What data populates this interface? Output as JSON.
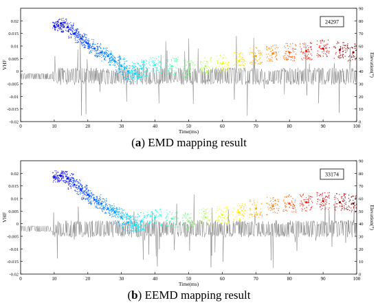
{
  "chart_data": [
    {
      "type": "scatter",
      "panel_letter": "a",
      "caption": "EMD mapping result",
      "count_label": "24297",
      "xlabel": "Time(ms)",
      "ylabel_left": "VHF",
      "ylabel_right": "Elevation(°)",
      "xlim": [
        0,
        100
      ],
      "ylim_left": [
        -0.02,
        0.025
      ],
      "ylim_right": [
        0,
        90
      ],
      "x_ticks": [
        "0",
        "10",
        "20",
        "30",
        "40",
        "50",
        "60",
        "70",
        "80",
        "90",
        "100"
      ],
      "y_ticks_left": [
        "-0.02",
        "-0.015",
        "-0.01",
        "-0.005",
        "0",
        "0.005",
        "0.01",
        "0.015",
        "0.02"
      ],
      "y_ticks_right": [
        "0",
        "10",
        "20",
        "30",
        "40",
        "50",
        "60",
        "70",
        "80",
        "90"
      ],
      "series": [
        {
          "kind": "vhf-waveform",
          "color": "#808080",
          "baseline": -0.002,
          "start_ms": 0,
          "burst_start_ms": 9.5
        },
        {
          "kind": "elevation-sources",
          "colormap": "jet",
          "points": [
            [
              10,
              76
            ],
            [
              12,
              78
            ],
            [
              14,
              75
            ],
            [
              16,
              70
            ],
            [
              18,
              66
            ],
            [
              20,
              62
            ],
            [
              22,
              58
            ],
            [
              24,
              55
            ],
            [
              26,
              52
            ],
            [
              28,
              48
            ],
            [
              30,
              44
            ],
            [
              32,
              40
            ],
            [
              34,
              38
            ],
            [
              36,
              42
            ],
            [
              40,
              45
            ],
            [
              45,
              44
            ],
            [
              50,
              42
            ],
            [
              55,
              44
            ],
            [
              60,
              46
            ],
            [
              65,
              48
            ],
            [
              70,
              52
            ],
            [
              75,
              54
            ],
            [
              80,
              55
            ],
            [
              85,
              56
            ],
            [
              90,
              58
            ],
            [
              95,
              57
            ],
            [
              99,
              55
            ]
          ]
        }
      ],
      "grid": false
    },
    {
      "type": "scatter",
      "panel_letter": "b",
      "caption": "EEMD mapping result",
      "count_label": "33174",
      "xlabel": "Time(ms)",
      "ylabel_left": "VHF",
      "ylabel_right": "Elevation(°)",
      "xlim": [
        0,
        100
      ],
      "ylim_left": [
        -0.02,
        0.025
      ],
      "ylim_right": [
        0,
        90
      ],
      "x_ticks": [
        "0",
        "10",
        "20",
        "30",
        "40",
        "50",
        "60",
        "70",
        "80",
        "90",
        "100"
      ],
      "y_ticks_left": [
        "-0.02",
        "-0.015",
        "-0.01",
        "-0.005",
        "0",
        "0.005",
        "0.01",
        "0.015",
        "0.02"
      ],
      "y_ticks_right": [
        "0",
        "10",
        "20",
        "30",
        "40",
        "50",
        "60",
        "70",
        "80",
        "90"
      ],
      "series": [
        {
          "kind": "vhf-waveform",
          "color": "#808080",
          "baseline": -0.002,
          "start_ms": 0,
          "burst_start_ms": 9.5
        },
        {
          "kind": "elevation-sources",
          "colormap": "jet",
          "points": [
            [
              10,
              77
            ],
            [
              12,
              78
            ],
            [
              14,
              76
            ],
            [
              16,
              71
            ],
            [
              18,
              67
            ],
            [
              20,
              63
            ],
            [
              22,
              59
            ],
            [
              24,
              56
            ],
            [
              26,
              52
            ],
            [
              28,
              49
            ],
            [
              30,
              45
            ],
            [
              32,
              41
            ],
            [
              34,
              39
            ],
            [
              36,
              42
            ],
            [
              40,
              45
            ],
            [
              45,
              44
            ],
            [
              50,
              42
            ],
            [
              55,
              45
            ],
            [
              60,
              47
            ],
            [
              65,
              49
            ],
            [
              70,
              52
            ],
            [
              75,
              54
            ],
            [
              80,
              56
            ],
            [
              85,
              57
            ],
            [
              90,
              58
            ],
            [
              95,
              57
            ],
            [
              99,
              56
            ]
          ]
        }
      ],
      "grid": false
    }
  ]
}
